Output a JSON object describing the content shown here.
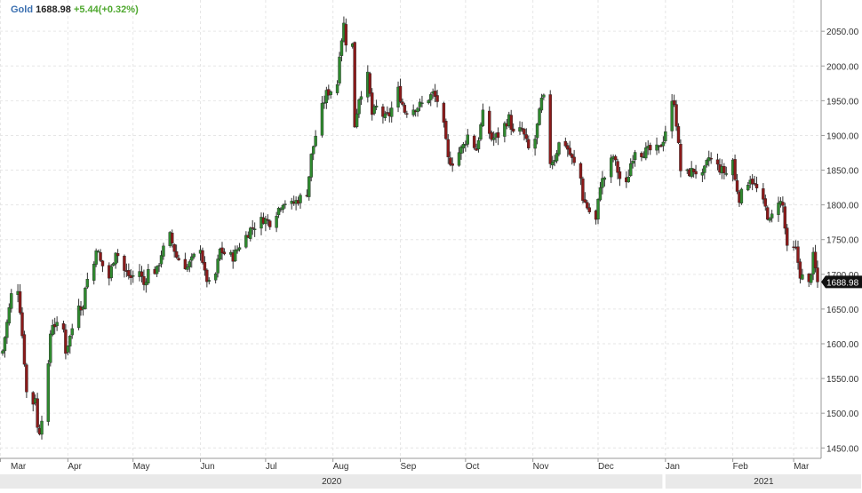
{
  "ticker": {
    "symbol": "Gold",
    "price": "1688.98",
    "change": "+5.44(+0.32%)"
  },
  "last_price_label": "1688.98",
  "colors": {
    "symbol": "#3a6fb0",
    "price": "#222222",
    "change": "#4fa82f",
    "up_candle": "#2f8a2f",
    "down_candle": "#8b1a1a",
    "wick": "#333333",
    "grid": "#e6e6e6",
    "axis_line": "#999999",
    "bottom_band": "#e9e9e9"
  },
  "chart_data": {
    "type": "candlestick",
    "title": "",
    "xlabel": "",
    "ylabel": "",
    "ylim": [
      1435,
      2095
    ],
    "y_ticks": [
      1450,
      1500,
      1550,
      1600,
      1650,
      1700,
      1750,
      1800,
      1850,
      1900,
      1950,
      2000,
      2050
    ],
    "y_tick_labels": [
      "1450.00",
      "1500.00",
      "1550.00",
      "1600.00",
      "1650.00",
      "1700.00",
      "1750.00",
      "1800.00",
      "1850.00",
      "1900.00",
      "1950.00",
      "2000.00",
      "2050.00"
    ],
    "x_range": [
      "2020-03-02",
      "2021-03-12"
    ],
    "month_ticks": [
      {
        "date": "2020-03-01",
        "label": "Mar"
      },
      {
        "date": "2020-04-01",
        "label": "Apr"
      },
      {
        "date": "2020-05-01",
        "label": "May"
      },
      {
        "date": "2020-06-01",
        "label": "Jun"
      },
      {
        "date": "2020-07-01",
        "label": "Jul"
      },
      {
        "date": "2020-08-01",
        "label": "Aug"
      },
      {
        "date": "2020-09-01",
        "label": "Sep"
      },
      {
        "date": "2020-10-01",
        "label": "Oct"
      },
      {
        "date": "2020-11-01",
        "label": "Nov"
      },
      {
        "date": "2020-12-01",
        "label": "Dec"
      },
      {
        "date": "2021-01-01",
        "label": "Jan"
      },
      {
        "date": "2021-02-01",
        "label": "Feb"
      },
      {
        "date": "2021-03-01",
        "label": "Mar"
      }
    ],
    "year_labels": [
      {
        "label": "2020",
        "from": "2020-03-02",
        "to": "2020-12-31"
      },
      {
        "label": "2021",
        "from": "2021-01-01",
        "to": "2021-03-12"
      }
    ],
    "grid": true,
    "close_path": [
      [
        "2020-03-02",
        1590
      ],
      [
        "2020-03-06",
        1670
      ],
      [
        "2020-03-09",
        1680
      ],
      [
        "2020-03-10",
        1650
      ],
      [
        "2020-03-12",
        1575
      ],
      [
        "2020-03-13",
        1530
      ],
      [
        "2020-03-16",
        1515
      ],
      [
        "2020-03-17",
        1525
      ],
      [
        "2020-03-18",
        1478
      ],
      [
        "2020-03-19",
        1475
      ],
      [
        "2020-03-20",
        1495
      ],
      [
        "2020-03-23",
        1565
      ],
      [
        "2020-03-24",
        1615
      ],
      [
        "2020-03-25",
        1630
      ],
      [
        "2020-03-27",
        1625
      ],
      [
        "2020-03-30",
        1620
      ],
      [
        "2020-03-31",
        1590
      ],
      [
        "2020-04-02",
        1610
      ],
      [
        "2020-04-06",
        1660
      ],
      [
        "2020-04-08",
        1650
      ],
      [
        "2020-04-09",
        1685
      ],
      [
        "2020-04-13",
        1715
      ],
      [
        "2020-04-14",
        1740
      ],
      [
        "2020-04-16",
        1718
      ],
      [
        "2020-04-20",
        1695
      ],
      [
        "2020-04-23",
        1735
      ],
      [
        "2020-04-27",
        1705
      ],
      [
        "2020-04-30",
        1695
      ],
      [
        "2020-05-04",
        1705
      ],
      [
        "2020-05-06",
        1685
      ],
      [
        "2020-05-08",
        1705
      ],
      [
        "2020-05-12",
        1705
      ],
      [
        "2020-05-14",
        1730
      ],
      [
        "2020-05-18",
        1755
      ],
      [
        "2020-05-21",
        1725
      ],
      [
        "2020-05-26",
        1710
      ],
      [
        "2020-05-28",
        1720
      ],
      [
        "2020-06-01",
        1740
      ],
      [
        "2020-06-03",
        1700
      ],
      [
        "2020-06-05",
        1685
      ],
      [
        "2020-06-08",
        1700
      ],
      [
        "2020-06-10",
        1735
      ],
      [
        "2020-06-12",
        1730
      ],
      [
        "2020-06-16",
        1725
      ],
      [
        "2020-06-19",
        1742
      ],
      [
        "2020-06-22",
        1755
      ],
      [
        "2020-06-24",
        1765
      ],
      [
        "2020-06-26",
        1770
      ],
      [
        "2020-06-30",
        1780
      ],
      [
        "2020-07-03",
        1775
      ],
      [
        "2020-07-07",
        1795
      ],
      [
        "2020-07-09",
        1805
      ],
      [
        "2020-07-13",
        1800
      ],
      [
        "2020-07-17",
        1810
      ],
      [
        "2020-07-20",
        1818
      ],
      [
        "2020-07-21",
        1842
      ],
      [
        "2020-07-22",
        1870
      ],
      [
        "2020-07-24",
        1900
      ],
      [
        "2020-07-27",
        1940
      ],
      [
        "2020-07-29",
        1960
      ],
      [
        "2020-07-31",
        1965
      ],
      [
        "2020-08-03",
        1975
      ],
      [
        "2020-08-04",
        2020
      ],
      [
        "2020-08-06",
        2060
      ],
      [
        "2020-08-07",
        2035
      ],
      [
        "2020-08-10",
        2030
      ],
      [
        "2020-08-11",
        1915
      ],
      [
        "2020-08-13",
        1955
      ],
      [
        "2020-08-17",
        1985
      ],
      [
        "2020-08-19",
        1930
      ],
      [
        "2020-08-21",
        1940
      ],
      [
        "2020-08-25",
        1925
      ],
      [
        "2020-08-27",
        1930
      ],
      [
        "2020-08-31",
        1965
      ],
      [
        "2020-09-03",
        1935
      ],
      [
        "2020-09-08",
        1940
      ],
      [
        "2020-09-11",
        1945
      ],
      [
        "2020-09-16",
        1960
      ],
      [
        "2020-09-18",
        1950
      ],
      [
        "2020-09-21",
        1912
      ],
      [
        "2020-09-23",
        1865
      ],
      [
        "2020-09-25",
        1862
      ],
      [
        "2020-09-30",
        1885
      ],
      [
        "2020-10-02",
        1900
      ],
      [
        "2020-10-06",
        1880
      ],
      [
        "2020-10-09",
        1930
      ],
      [
        "2020-10-13",
        1895
      ],
      [
        "2020-10-16",
        1900
      ],
      [
        "2020-10-21",
        1925
      ],
      [
        "2020-10-23",
        1902
      ],
      [
        "2020-10-27",
        1908
      ],
      [
        "2020-10-30",
        1880
      ],
      [
        "2020-11-02",
        1895
      ],
      [
        "2020-11-05",
        1950
      ],
      [
        "2020-11-06",
        1952
      ],
      [
        "2020-11-09",
        1862
      ],
      [
        "2020-11-11",
        1868
      ],
      [
        "2020-11-13",
        1888
      ],
      [
        "2020-11-16",
        1888
      ],
      [
        "2020-11-19",
        1865
      ],
      [
        "2020-11-23",
        1838
      ],
      [
        "2020-11-24",
        1810
      ],
      [
        "2020-11-27",
        1790
      ],
      [
        "2020-11-30",
        1777
      ],
      [
        "2020-12-02",
        1830
      ],
      [
        "2020-12-04",
        1840
      ],
      [
        "2020-12-08",
        1870
      ],
      [
        "2020-12-11",
        1838
      ],
      [
        "2020-12-14",
        1828
      ],
      [
        "2020-12-16",
        1860
      ],
      [
        "2020-12-18",
        1880
      ],
      [
        "2020-12-21",
        1875
      ],
      [
        "2020-12-24",
        1878
      ],
      [
        "2020-12-29",
        1880
      ],
      [
        "2020-12-31",
        1895
      ],
      [
        "2021-01-04",
        1945
      ],
      [
        "2021-01-05",
        1950
      ],
      [
        "2021-01-06",
        1918
      ],
      [
        "2021-01-08",
        1850
      ],
      [
        "2021-01-11",
        1845
      ],
      [
        "2021-01-14",
        1850
      ],
      [
        "2021-01-18",
        1840
      ],
      [
        "2021-01-21",
        1868
      ],
      [
        "2021-01-26",
        1852
      ],
      [
        "2021-01-29",
        1845
      ],
      [
        "2021-02-01",
        1865
      ],
      [
        "2021-02-02",
        1835
      ],
      [
        "2021-02-04",
        1810
      ],
      [
        "2021-02-09",
        1840
      ],
      [
        "2021-02-12",
        1822
      ],
      [
        "2021-02-16",
        1795
      ],
      [
        "2021-02-18",
        1775
      ],
      [
        "2021-02-22",
        1808
      ],
      [
        "2021-02-24",
        1798
      ],
      [
        "2021-02-26",
        1735
      ],
      [
        "2021-03-02",
        1735
      ],
      [
        "2021-03-04",
        1700
      ],
      [
        "2021-03-08",
        1685
      ],
      [
        "2021-03-10",
        1725
      ],
      [
        "2021-03-12",
        1689
      ]
    ]
  }
}
